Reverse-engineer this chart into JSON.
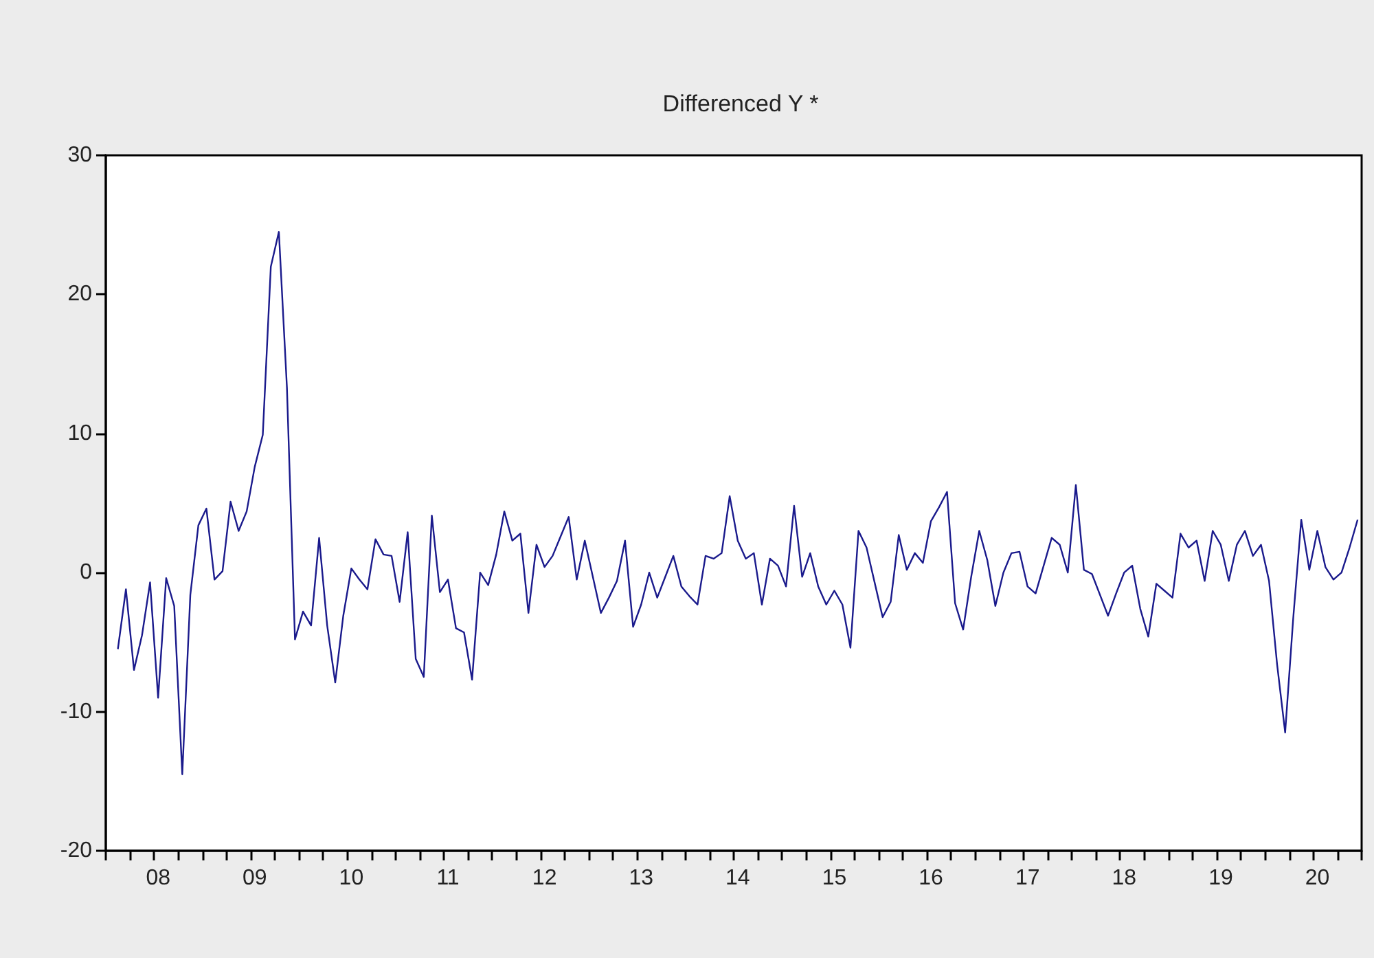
{
  "chart_data": {
    "type": "line",
    "title": "Differenced Y *",
    "marker": "none",
    "line_style": "solid",
    "ylim": [
      -20,
      30
    ],
    "yticks": [
      -20,
      -10,
      0,
      10,
      20,
      30
    ],
    "categories": [
      null,
      null,
      null,
      null,
      null,
      null,
      "08",
      null,
      null,
      null,
      null,
      null,
      null,
      null,
      null,
      null,
      null,
      null,
      "09",
      null,
      null,
      null,
      null,
      null,
      null,
      null,
      null,
      null,
      null,
      null,
      "10",
      null,
      null,
      null,
      null,
      null,
      null,
      null,
      null,
      null,
      null,
      null,
      "11",
      null,
      null,
      null,
      null,
      null,
      null,
      null,
      null,
      null,
      null,
      null,
      "12",
      null,
      null,
      null,
      null,
      null,
      null,
      null,
      null,
      null,
      null,
      null,
      "13",
      null,
      null,
      null,
      null,
      null,
      null,
      null,
      null,
      null,
      null,
      null,
      "14",
      null,
      null,
      null,
      null,
      null,
      null,
      null,
      null,
      null,
      null,
      null,
      "15",
      null,
      null,
      null,
      null,
      null,
      null,
      null,
      null,
      null,
      null,
      null,
      "16",
      null,
      null,
      null,
      null,
      null,
      null,
      null,
      null,
      null,
      null,
      null,
      "17",
      null,
      null,
      null,
      null,
      null,
      null,
      null,
      null,
      null,
      null,
      null,
      "18",
      null,
      null,
      null,
      null,
      null,
      null,
      null,
      null,
      null,
      null,
      null,
      "19",
      null,
      null,
      null,
      null,
      null,
      null,
      null,
      null,
      null,
      null,
      null,
      "20",
      null,
      null,
      null,
      null,
      null
    ],
    "series": [
      {
        "color": "#1a1a8c",
        "values": [
          null,
          -5.5,
          -1.2,
          -7,
          -4.5,
          -0.7,
          -9,
          -0.4,
          -2.4,
          -14.5,
          -1.6,
          3.4,
          4.6,
          -0.5,
          0.1,
          5.1,
          3,
          4.4,
          7.6,
          9.9,
          22,
          24.5,
          13.3,
          -4.8,
          -2.8,
          -3.8,
          2.5,
          -3.8,
          -7.9,
          -3.1,
          0.3,
          -0.5,
          -1.2,
          2.4,
          1.3,
          1.2,
          -2.1,
          2.9,
          -6.2,
          -7.5,
          4.1,
          -1.4,
          -0.5,
          -4,
          -4.3,
          -7.7,
          0,
          -0.9,
          1.3,
          4.4,
          2.3,
          2.8,
          -2.9,
          2,
          0.4,
          1.2,
          2.6,
          4,
          -0.5,
          2.3,
          -0.3,
          -2.9,
          -1.8,
          -0.6,
          2.3,
          -3.9,
          -2.3,
          0,
          -1.8,
          -0.3,
          1.2,
          -1,
          -1.7,
          -2.3,
          1.2,
          1,
          1.4,
          5.5,
          2.3,
          1,
          1.4,
          -2.3,
          1,
          0.5,
          -1,
          4.8,
          -0.3,
          1.4,
          -1,
          -2.3,
          -1.3,
          -2.3,
          -5.4,
          3,
          1.8,
          -0.7,
          -3.2,
          -2.1,
          2.7,
          0.2,
          1.4,
          0.7,
          3.7,
          4.7,
          5.8,
          -2.2,
          -4.1,
          -0.3,
          3,
          0.9,
          -2.4,
          0,
          1.4,
          1.5,
          -1,
          -1.5,
          0.5,
          2.5,
          2,
          0,
          6.3,
          0.2,
          -0.1,
          -1.6,
          -3.1,
          -1.5,
          0,
          0.5,
          -2.6,
          -4.6,
          -0.8,
          -1.3,
          -1.8,
          2.8,
          1.8,
          2.3,
          -0.6,
          3,
          2,
          -0.6,
          2,
          3,
          1.2,
          2,
          -0.6,
          -6.6,
          -11.5,
          -3.3,
          3.8,
          0.2,
          3,
          0.4,
          -0.5,
          0,
          1.8,
          3.8
        ]
      }
    ]
  }
}
